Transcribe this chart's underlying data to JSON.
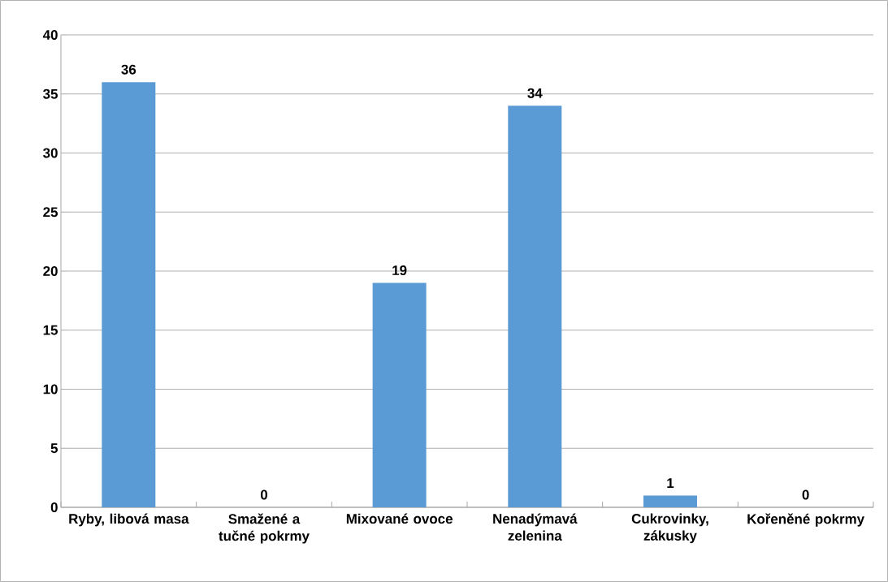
{
  "chart_data": {
    "type": "bar",
    "categories": [
      "Ryby, libová masa",
      "Smažené a tučné pokrmy",
      "Mixované ovoce",
      "Nenadýmavá zelenina",
      "Cukrovinky, zákusky",
      "Kořeněné pokrmy"
    ],
    "values": [
      36,
      0,
      19,
      34,
      1,
      0
    ],
    "color": "#5b9bd5",
    "ylim": [
      0,
      40
    ],
    "yticks": [
      0,
      5,
      10,
      15,
      20,
      25,
      30,
      35,
      40
    ],
    "grid": "y",
    "data_labels": true
  }
}
